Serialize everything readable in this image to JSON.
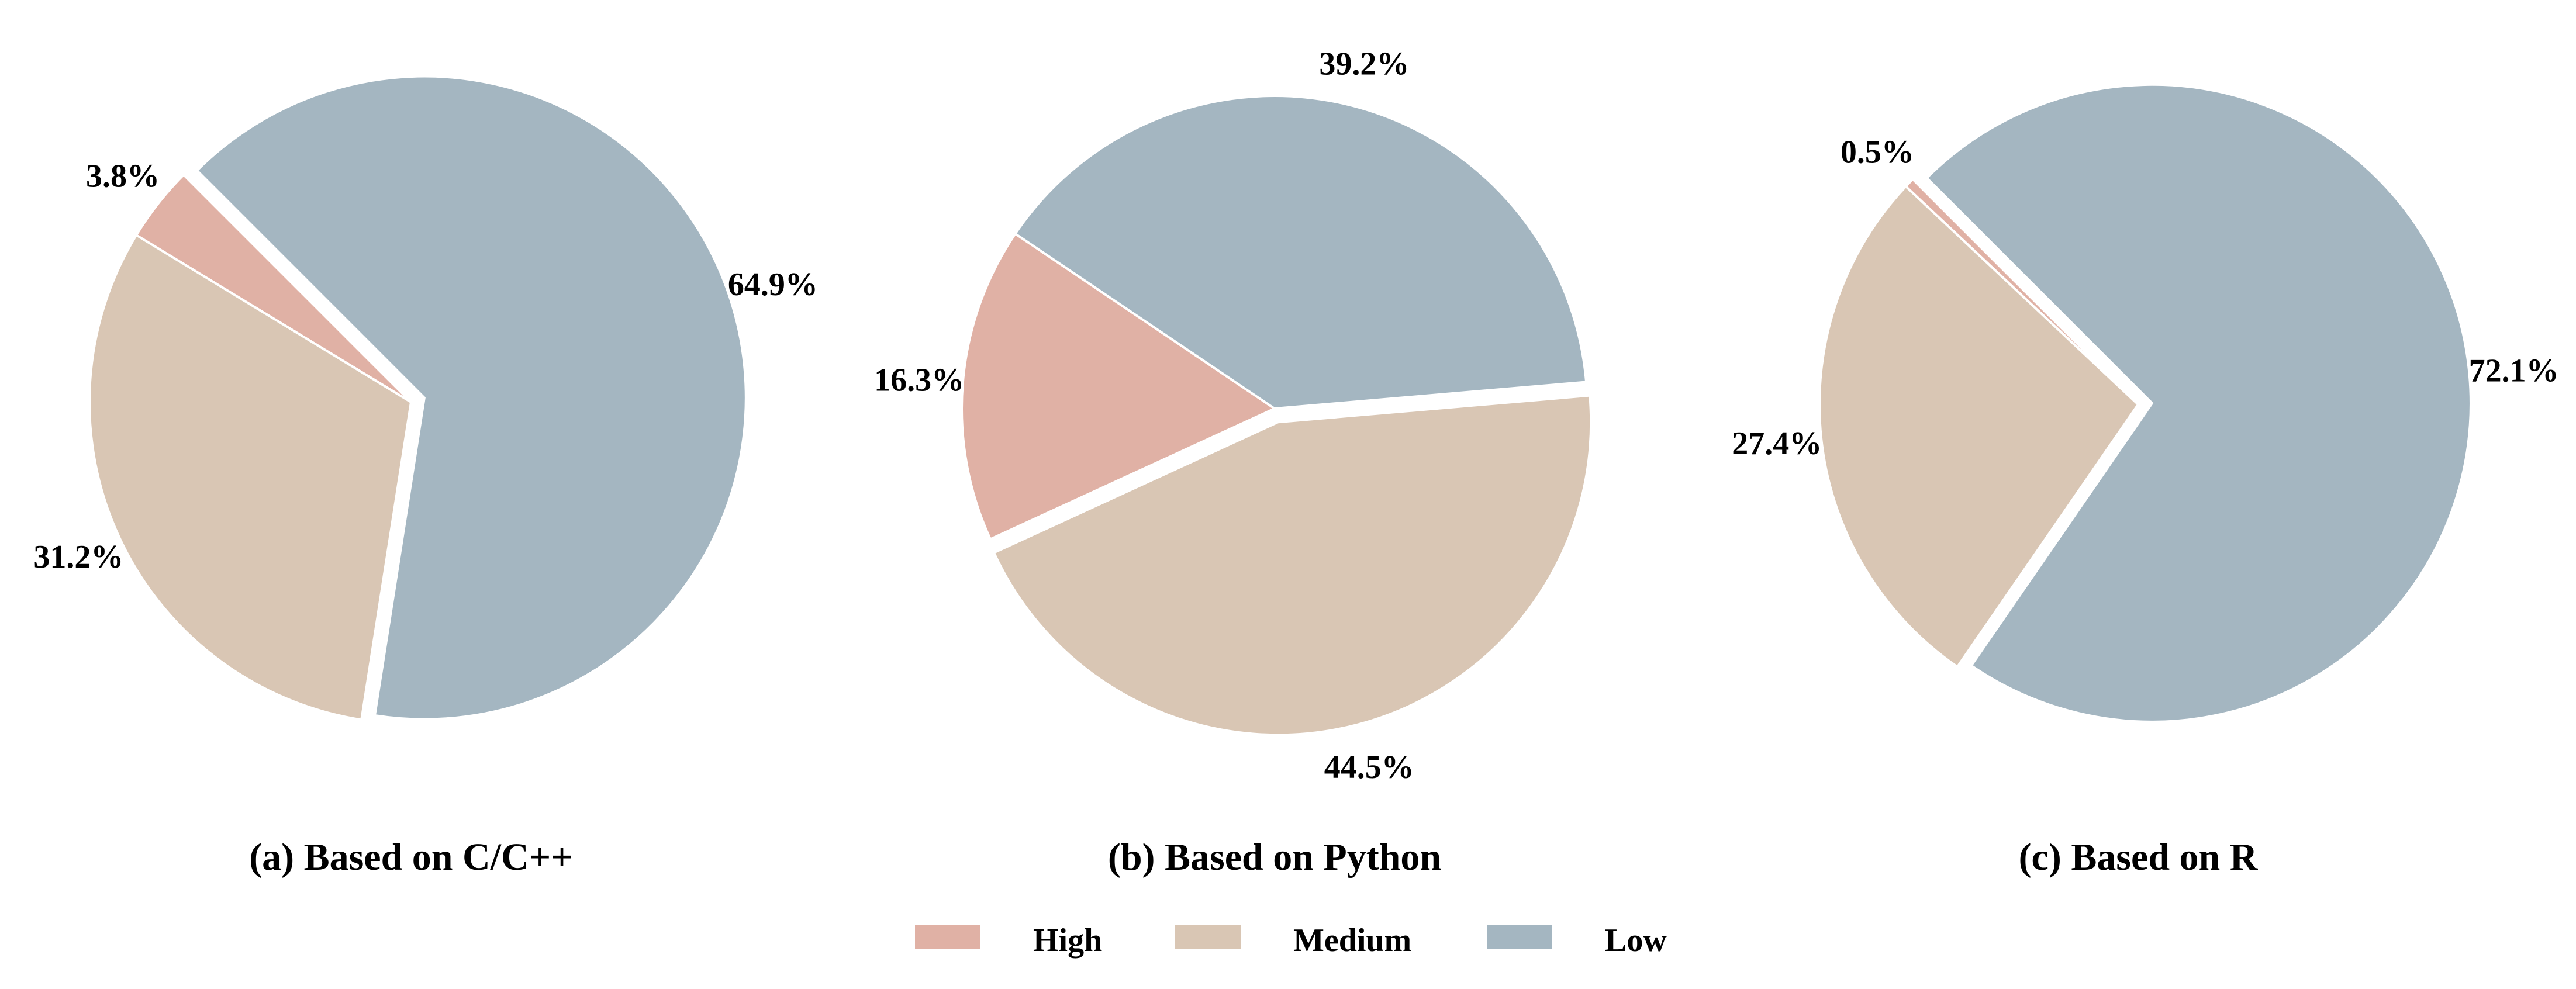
{
  "colors": {
    "High": "#e0b1a5",
    "Medium": "#d9c6b4",
    "Low": "#a4b6c1"
  },
  "chart_data": [
    {
      "type": "pie",
      "title": "(a) Based on C/C++",
      "slices": [
        {
          "name": "High",
          "value": 3.8,
          "label": "3.8%"
        },
        {
          "name": "Medium",
          "value": 31.2,
          "label": "31.2%"
        },
        {
          "name": "Low",
          "value": 64.9,
          "label": "64.9%"
        }
      ]
    },
    {
      "type": "pie",
      "title": "(b) Based on Python",
      "slices": [
        {
          "name": "High",
          "value": 16.3,
          "label": "16.3%"
        },
        {
          "name": "Medium",
          "value": 44.5,
          "label": "44.5%"
        },
        {
          "name": "Low",
          "value": 39.2,
          "label": "39.2%"
        }
      ]
    },
    {
      "type": "pie",
      "title": "(c) Based on R",
      "slices": [
        {
          "name": "High",
          "value": 0.5,
          "label": "0.5%"
        },
        {
          "name": "Medium",
          "value": 27.4,
          "label": "27.4%"
        },
        {
          "name": "Low",
          "value": 72.1,
          "label": "72.1%"
        }
      ]
    }
  ],
  "legend": {
    "placement": "bottom-center",
    "items": [
      "High",
      "Medium",
      "Low"
    ]
  }
}
